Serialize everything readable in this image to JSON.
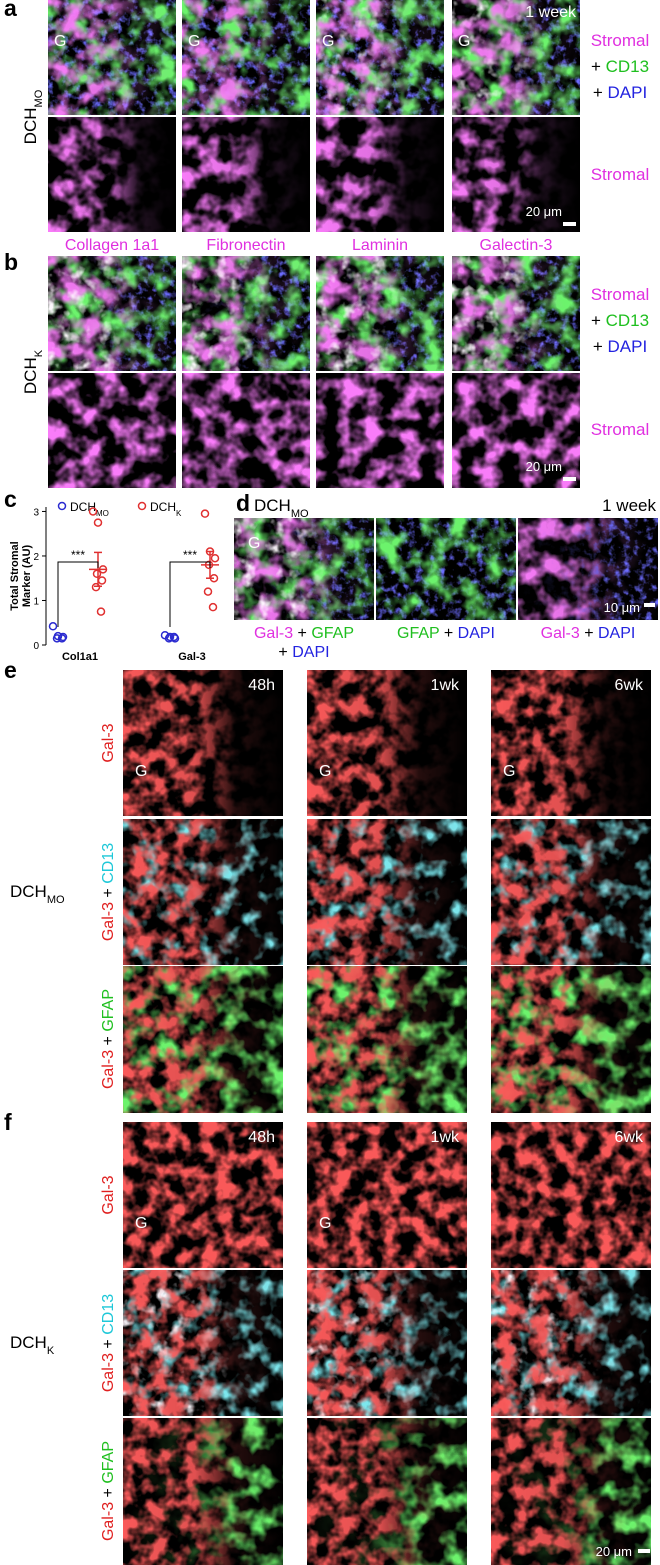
{
  "panels": {
    "a": {
      "letter": "a",
      "group": {
        "text": "DCH",
        "sub": "MO"
      },
      "time": "1 week",
      "G": [
        "G",
        "G",
        "G",
        "G"
      ],
      "row_labels": [
        [
          [
            {
              "t": "Stromal",
              "c": "#e030e0"
            }
          ],
          [
            {
              "t": "+ ",
              "c": "#000000"
            },
            {
              "t": "CD13",
              "c": "#1fbf1f"
            }
          ],
          [
            {
              "t": "+ ",
              "c": "#000000"
            },
            {
              "t": "DAPI",
              "c": "#2323e0"
            }
          ]
        ],
        [
          [
            {
              "t": "Stromal",
              "c": "#e030e0"
            }
          ]
        ]
      ],
      "scale_bar": "20 μm"
    },
    "columns": [
      "Collagen 1a1",
      "Fibronectin",
      "Laminin",
      "Galectin-3"
    ],
    "b": {
      "letter": "b",
      "group": {
        "text": "DCH",
        "sub": "K"
      },
      "row_labels": [
        [
          [
            {
              "t": "Stromal",
              "c": "#e030e0"
            }
          ],
          [
            {
              "t": "+ ",
              "c": "#000000"
            },
            {
              "t": "CD13",
              "c": "#1fbf1f"
            }
          ],
          [
            {
              "t": "+ ",
              "c": "#000000"
            },
            {
              "t": "DAPI",
              "c": "#2323e0"
            }
          ]
        ],
        [
          [
            {
              "t": "Stromal",
              "c": "#e030e0"
            }
          ]
        ]
      ],
      "scale_bar": "20 μm"
    },
    "c": {
      "letter": "c"
    },
    "d": {
      "letter": "d",
      "group": {
        "text": "DCH",
        "sub": "MO"
      },
      "time": "1 week",
      "G": "G",
      "labels": [
        [
          [
            {
              "t": "Gal-3",
              "c": "#e030e0"
            },
            {
              "t": " + ",
              "c": "#000000"
            },
            {
              "t": "GFAP",
              "c": "#1fbf1f"
            }
          ],
          [
            {
              "t": "+ ",
              "c": "#000000"
            },
            {
              "t": "DAPI",
              "c": "#2323e0"
            }
          ]
        ],
        [
          [
            {
              "t": "GFAP",
              "c": "#1fbf1f"
            },
            {
              "t": " + ",
              "c": "#000000"
            },
            {
              "t": "DAPI",
              "c": "#2323e0"
            }
          ]
        ],
        [
          [
            {
              "t": "Gal-3",
              "c": "#e030e0"
            },
            {
              "t": " + ",
              "c": "#000000"
            },
            {
              "t": "DAPI",
              "c": "#2323e0"
            }
          ]
        ]
      ],
      "scale_bar": "10 μm"
    },
    "e": {
      "letter": "e",
      "group": {
        "text": "DCH",
        "sub": "MO"
      },
      "times": [
        "48h",
        "1wk",
        "6wk"
      ],
      "G": [
        "G",
        "G",
        "G"
      ],
      "row_labels": [
        [
          {
            "t": "Gal-3",
            "c": "#e02020"
          }
        ],
        [
          {
            "t": "Gal-3",
            "c": "#e02020"
          },
          {
            "t": " + ",
            "c": "#000000"
          },
          {
            "t": "CD13",
            "c": "#1fc8d8"
          }
        ],
        [
          {
            "t": "Gal-3",
            "c": "#e02020"
          },
          {
            "t": " + ",
            "c": "#000000"
          },
          {
            "t": "GFAP",
            "c": "#1fbf1f"
          }
        ]
      ]
    },
    "f": {
      "letter": "f",
      "group": {
        "text": "DCH",
        "sub": "K"
      },
      "times": [
        "48h",
        "1wk",
        "6wk"
      ],
      "G": [
        "G",
        "G"
      ],
      "row_labels": [
        [
          {
            "t": "Gal-3",
            "c": "#e02020"
          }
        ],
        [
          {
            "t": "Gal-3",
            "c": "#e02020"
          },
          {
            "t": " + ",
            "c": "#000000"
          },
          {
            "t": "CD13",
            "c": "#1fc8d8"
          }
        ],
        [
          {
            "t": "Gal-3",
            "c": "#e02020"
          },
          {
            "t": " + ",
            "c": "#000000"
          },
          {
            "t": "GFAP",
            "c": "#1fbf1f"
          }
        ]
      ],
      "scale_bar": "20 μm"
    }
  },
  "chart_data": {
    "type": "scatter",
    "ylabel": [
      "Total Stromal",
      "Marker (AU)"
    ],
    "categories": [
      "Col1a1",
      "Gal-3"
    ],
    "series": [
      {
        "name": "DCH",
        "name_sub": "MO",
        "color": "#2a2ad0",
        "values": [
          [
            0.42,
            0.2,
            0.18,
            0.15,
            0.15
          ],
          [
            0.22,
            0.18,
            0.15,
            0.15,
            0.18
          ]
        ]
      },
      {
        "name": "DCH",
        "name_sub": "K",
        "color": "#e03030",
        "values": [
          [
            3.0,
            2.75,
            1.7,
            1.6,
            1.45,
            1.3,
            0.75
          ],
          [
            2.95,
            2.1,
            1.95,
            1.8,
            1.5,
            1.2,
            0.85
          ]
        ],
        "means": [
          1.7,
          1.8
        ],
        "errors": [
          0.38,
          0.3
        ]
      }
    ],
    "annotations": [
      "***",
      "***"
    ],
    "ylim": [
      0,
      3.1
    ],
    "yticks": [
      0,
      1,
      2,
      3
    ]
  }
}
